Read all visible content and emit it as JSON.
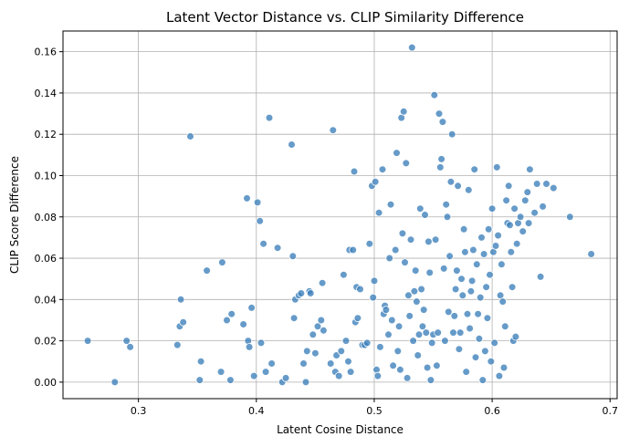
{
  "chart_data": {
    "type": "scatter",
    "title": "Latent Vector Distance vs. CLIP Similarity Difference",
    "xlabel": "Latent Cosine Distance",
    "ylabel": "CLIP Score Difference",
    "xlim": [
      0.236,
      0.706
    ],
    "ylim": [
      -0.008,
      0.17
    ],
    "xticks": [
      0.3,
      0.4,
      0.5,
      0.6,
      0.7
    ],
    "xtick_labels": [
      "0.3",
      "0.4",
      "0.5",
      "0.6",
      "0.7"
    ],
    "yticks": [
      0.0,
      0.02,
      0.04,
      0.06,
      0.08,
      0.1,
      0.12,
      0.14,
      0.16
    ],
    "ytick_labels": [
      "0.00",
      "0.02",
      "0.04",
      "0.06",
      "0.08",
      "0.10",
      "0.12",
      "0.14",
      "0.16"
    ],
    "grid": true,
    "point_color": "#3b7fba",
    "points": [
      [
        0.257,
        0.02
      ],
      [
        0.28,
        0.0
      ],
      [
        0.29,
        0.02
      ],
      [
        0.293,
        0.017
      ],
      [
        0.333,
        0.018
      ],
      [
        0.335,
        0.027
      ],
      [
        0.336,
        0.04
      ],
      [
        0.338,
        0.029
      ],
      [
        0.344,
        0.119
      ],
      [
        0.352,
        0.001
      ],
      [
        0.353,
        0.01
      ],
      [
        0.358,
        0.054
      ],
      [
        0.37,
        0.005
      ],
      [
        0.371,
        0.058
      ],
      [
        0.375,
        0.03
      ],
      [
        0.378,
        0.001
      ],
      [
        0.379,
        0.033
      ],
      [
        0.389,
        0.028
      ],
      [
        0.392,
        0.089
      ],
      [
        0.393,
        0.02
      ],
      [
        0.394,
        0.017
      ],
      [
        0.396,
        0.036
      ],
      [
        0.398,
        0.003
      ],
      [
        0.401,
        0.087
      ],
      [
        0.403,
        0.078
      ],
      [
        0.404,
        0.019
      ],
      [
        0.406,
        0.067
      ],
      [
        0.408,
        0.005
      ],
      [
        0.411,
        0.128
      ],
      [
        0.413,
        0.009
      ],
      [
        0.418,
        0.065
      ],
      [
        0.422,
        0.0
      ],
      [
        0.425,
        0.002
      ],
      [
        0.43,
        0.115
      ],
      [
        0.431,
        0.061
      ],
      [
        0.432,
        0.031
      ],
      [
        0.433,
        0.04
      ],
      [
        0.436,
        0.042
      ],
      [
        0.438,
        0.043
      ],
      [
        0.44,
        0.009
      ],
      [
        0.442,
        0.0
      ],
      [
        0.443,
        0.015
      ],
      [
        0.445,
        0.044
      ],
      [
        0.446,
        0.043
      ],
      [
        0.448,
        0.023
      ],
      [
        0.45,
        0.014
      ],
      [
        0.452,
        0.027
      ],
      [
        0.455,
        0.03
      ],
      [
        0.456,
        0.048
      ],
      [
        0.457,
        0.025
      ],
      [
        0.463,
        0.009
      ],
      [
        0.465,
        0.122
      ],
      [
        0.467,
        0.005
      ],
      [
        0.468,
        0.013
      ],
      [
        0.47,
        0.003
      ],
      [
        0.472,
        0.015
      ],
      [
        0.474,
        0.052
      ],
      [
        0.476,
        0.02
      ],
      [
        0.478,
        0.01
      ],
      [
        0.479,
        0.064
      ],
      [
        0.48,
        0.005
      ],
      [
        0.482,
        0.064
      ],
      [
        0.483,
        0.102
      ],
      [
        0.484,
        0.029
      ],
      [
        0.485,
        0.046
      ],
      [
        0.486,
        0.031
      ],
      [
        0.488,
        0.045
      ],
      [
        0.49,
        0.018
      ],
      [
        0.492,
        0.018
      ],
      [
        0.494,
        0.019
      ],
      [
        0.496,
        0.067
      ],
      [
        0.498,
        0.095
      ],
      [
        0.499,
        0.041
      ],
      [
        0.5,
        0.049
      ],
      [
        0.501,
        0.097
      ],
      [
        0.502,
        0.006
      ],
      [
        0.503,
        0.003
      ],
      [
        0.504,
        0.082
      ],
      [
        0.505,
        0.017
      ],
      [
        0.507,
        0.103
      ],
      [
        0.508,
        0.033
      ],
      [
        0.509,
        0.037
      ],
      [
        0.51,
        0.035
      ],
      [
        0.512,
        0.023
      ],
      [
        0.513,
        0.06
      ],
      [
        0.514,
        0.086
      ],
      [
        0.515,
        0.03
      ],
      [
        0.516,
        0.008
      ],
      [
        0.518,
        0.064
      ],
      [
        0.519,
        0.111
      ],
      [
        0.52,
        0.015
      ],
      [
        0.521,
        0.027
      ],
      [
        0.522,
        0.006
      ],
      [
        0.523,
        0.128
      ],
      [
        0.524,
        0.072
      ],
      [
        0.525,
        0.131
      ],
      [
        0.526,
        0.058
      ],
      [
        0.527,
        0.106
      ],
      [
        0.528,
        0.002
      ],
      [
        0.529,
        0.042
      ],
      [
        0.53,
        0.032
      ],
      [
        0.531,
        0.069
      ],
      [
        0.532,
        0.162
      ],
      [
        0.533,
        0.02
      ],
      [
        0.534,
        0.044
      ],
      [
        0.535,
        0.054
      ],
      [
        0.536,
        0.039
      ],
      [
        0.537,
        0.013
      ],
      [
        0.538,
        0.023
      ],
      [
        0.539,
        0.084
      ],
      [
        0.54,
        0.045
      ],
      [
        0.541,
        0.027
      ],
      [
        0.542,
        0.035
      ],
      [
        0.543,
        0.081
      ],
      [
        0.544,
        0.024
      ],
      [
        0.545,
        0.007
      ],
      [
        0.546,
        0.068
      ],
      [
        0.547,
        0.053
      ],
      [
        0.548,
        0.001
      ],
      [
        0.549,
        0.019
      ],
      [
        0.55,
        0.023
      ],
      [
        0.551,
        0.139
      ],
      [
        0.552,
        0.069
      ],
      [
        0.553,
        0.008
      ],
      [
        0.554,
        0.024
      ],
      [
        0.555,
        0.13
      ],
      [
        0.556,
        0.104
      ],
      [
        0.557,
        0.108
      ],
      [
        0.558,
        0.126
      ],
      [
        0.559,
        0.055
      ],
      [
        0.56,
        0.02
      ],
      [
        0.561,
        0.086
      ],
      [
        0.562,
        0.08
      ],
      [
        0.563,
        0.034
      ],
      [
        0.564,
        0.061
      ],
      [
        0.565,
        0.097
      ],
      [
        0.566,
        0.12
      ],
      [
        0.567,
        0.024
      ],
      [
        0.568,
        0.032
      ],
      [
        0.569,
        0.045
      ],
      [
        0.57,
        0.054
      ],
      [
        0.571,
        0.095
      ],
      [
        0.572,
        0.016
      ],
      [
        0.573,
        0.024
      ],
      [
        0.574,
        0.05
      ],
      [
        0.575,
        0.042
      ],
      [
        0.576,
        0.074
      ],
      [
        0.577,
        0.063
      ],
      [
        0.578,
        0.005
      ],
      [
        0.579,
        0.033
      ],
      [
        0.58,
        0.093
      ],
      [
        0.581,
        0.026
      ],
      [
        0.582,
        0.044
      ],
      [
        0.583,
        0.049
      ],
      [
        0.584,
        0.064
      ],
      [
        0.585,
        0.103
      ],
      [
        0.586,
        0.012
      ],
      [
        0.587,
        0.057
      ],
      [
        0.588,
        0.033
      ],
      [
        0.589,
        0.021
      ],
      [
        0.59,
        0.041
      ],
      [
        0.591,
        0.07
      ],
      [
        0.592,
        0.001
      ],
      [
        0.593,
        0.062
      ],
      [
        0.594,
        0.015
      ],
      [
        0.595,
        0.046
      ],
      [
        0.596,
        0.031
      ],
      [
        0.597,
        0.074
      ],
      [
        0.598,
        0.052
      ],
      [
        0.599,
        0.01
      ],
      [
        0.6,
        0.084
      ],
      [
        0.601,
        0.063
      ],
      [
        0.602,
        0.019
      ],
      [
        0.603,
        0.066
      ],
      [
        0.604,
        0.104
      ],
      [
        0.605,
        0.071
      ],
      [
        0.606,
        0.003
      ],
      [
        0.607,
        0.042
      ],
      [
        0.608,
        0.057
      ],
      [
        0.609,
        0.039
      ],
      [
        0.61,
        0.007
      ],
      [
        0.611,
        0.027
      ],
      [
        0.612,
        0.088
      ],
      [
        0.613,
        0.077
      ],
      [
        0.614,
        0.095
      ],
      [
        0.615,
        0.076
      ],
      [
        0.616,
        0.063
      ],
      [
        0.617,
        0.046
      ],
      [
        0.618,
        0.02
      ],
      [
        0.619,
        0.084
      ],
      [
        0.62,
        0.022
      ],
      [
        0.621,
        0.067
      ],
      [
        0.622,
        0.077
      ],
      [
        0.624,
        0.08
      ],
      [
        0.626,
        0.073
      ],
      [
        0.628,
        0.088
      ],
      [
        0.63,
        0.092
      ],
      [
        0.631,
        0.077
      ],
      [
        0.632,
        0.103
      ],
      [
        0.636,
        0.082
      ],
      [
        0.638,
        0.096
      ],
      [
        0.641,
        0.051
      ],
      [
        0.643,
        0.085
      ],
      [
        0.646,
        0.096
      ],
      [
        0.652,
        0.094
      ],
      [
        0.666,
        0.08
      ],
      [
        0.684,
        0.062
      ]
    ]
  }
}
